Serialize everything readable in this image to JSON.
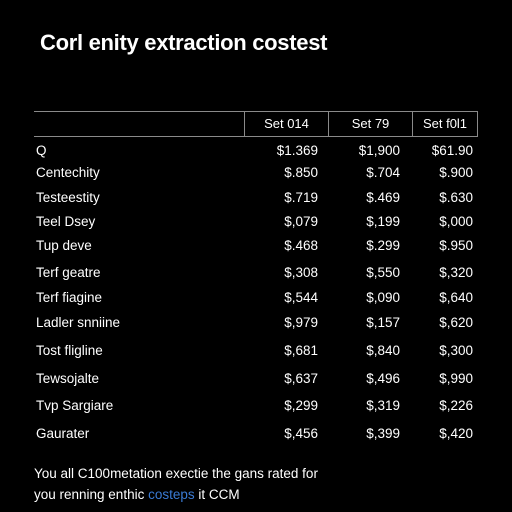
{
  "title": "Corl enity extraction costest",
  "table": {
    "columns": [
      "Set 014",
      "Set 79",
      "Set f0l1"
    ],
    "rows": [
      {
        "label": "Q",
        "values": [
          "$1.369",
          "$1,900",
          "$61.90"
        ]
      },
      {
        "label": "Centechity",
        "values": [
          "$.850",
          "$.704",
          "$.900"
        ]
      },
      {
        "label": "Testeestity",
        "values": [
          "$.719",
          "$.469",
          "$.630"
        ]
      },
      {
        "label": "Teel Dsey",
        "values": [
          "$,079",
          "$,199",
          "$,000"
        ]
      },
      {
        "label": "Tup deve",
        "values": [
          "$.468",
          "$.299",
          "$.950"
        ]
      },
      {
        "label": "Terf geatre",
        "values": [
          "$,308",
          "$,550",
          "$,320"
        ]
      },
      {
        "label": "Terf fiagine",
        "values": [
          "$,544",
          "$,090",
          "$,640"
        ]
      },
      {
        "label": "Ladler snniine",
        "values": [
          "$,979",
          "$,157",
          "$,620"
        ]
      },
      {
        "label": "Tost fligline",
        "values": [
          "$,681",
          "$,840",
          "$,300"
        ]
      },
      {
        "label": "Tewsojalte",
        "values": [
          "$,637",
          "$,496",
          "$,990"
        ]
      },
      {
        "label": "Tvp Sargiare",
        "values": [
          "$,299",
          "$,319",
          "$,226"
        ]
      },
      {
        "label": "Gaurater",
        "values": [
          "$,456",
          "$,399",
          "$,420"
        ]
      }
    ]
  },
  "footer": {
    "line1": "You all C100metation exectie the gans rated for",
    "line2_pre": "you renning enthic",
    "line2_link": "costeps",
    "line2_post": " it CCM"
  }
}
